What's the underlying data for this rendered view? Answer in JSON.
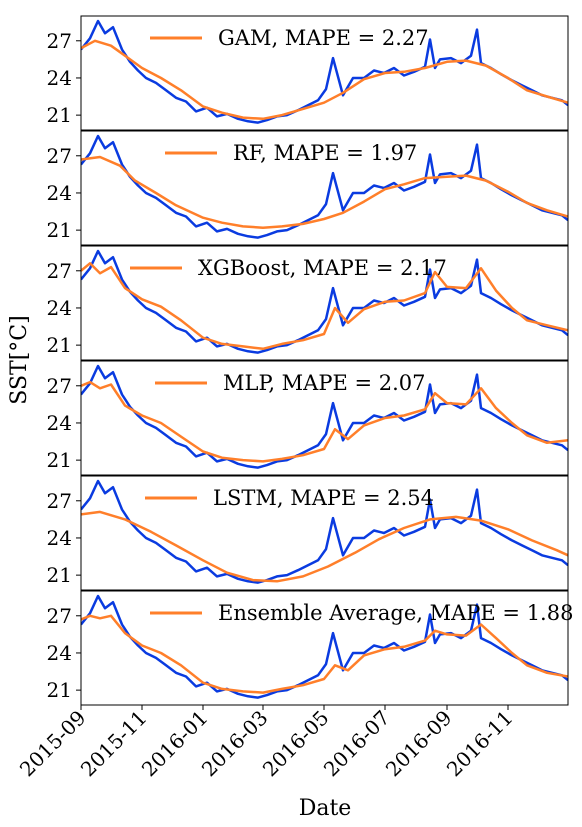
{
  "chart_data": {
    "type": "line",
    "ylabel": "SST[°C]",
    "xlabel": "Date",
    "xlim": [
      "2015-09-01",
      "2016-12-31"
    ],
    "xticks": [
      "2015-09",
      "2015-11",
      "2016-01",
      "2016-03",
      "2016-05",
      "2016-07",
      "2016-09",
      "2016-11"
    ],
    "ylim": [
      19.8,
      29.0
    ],
    "yticks": [
      21,
      24,
      27
    ],
    "shared_x": true,
    "observed_color": "#0a3be0",
    "predicted_color": "#ff7f2a",
    "observed": {
      "x": [
        "2015-09-01",
        "2015-09-10",
        "2015-09-18",
        "2015-09-25",
        "2015-10-03",
        "2015-10-12",
        "2015-10-20",
        "2015-10-28",
        "2015-11-05",
        "2015-11-15",
        "2015-11-25",
        "2015-12-05",
        "2015-12-15",
        "2015-12-25",
        "2016-01-05",
        "2016-01-15",
        "2016-01-25",
        "2016-02-05",
        "2016-02-15",
        "2016-02-25",
        "2016-03-05",
        "2016-03-15",
        "2016-03-25",
        "2016-04-05",
        "2016-04-15",
        "2016-04-25",
        "2016-05-03",
        "2016-05-10",
        "2016-05-20",
        "2016-05-30",
        "2016-06-10",
        "2016-06-20",
        "2016-06-30",
        "2016-07-10",
        "2016-07-20",
        "2016-07-30",
        "2016-08-10",
        "2016-08-15",
        "2016-08-20",
        "2016-08-25",
        "2016-09-05",
        "2016-09-15",
        "2016-09-25",
        "2016-10-01",
        "2016-10-05",
        "2016-10-15",
        "2016-10-25",
        "2016-11-05",
        "2016-11-15",
        "2016-11-25",
        "2016-12-05",
        "2016-12-15",
        "2016-12-25",
        "2016-12-31"
      ],
      "y": [
        26.3,
        27.2,
        28.6,
        27.6,
        28.1,
        26.3,
        25.3,
        24.6,
        24.0,
        23.6,
        23.0,
        22.4,
        22.1,
        21.3,
        21.6,
        20.9,
        21.1,
        20.7,
        20.5,
        20.4,
        20.6,
        20.9,
        21.0,
        21.4,
        21.8,
        22.2,
        23.1,
        25.6,
        22.6,
        24.0,
        24.0,
        24.6,
        24.4,
        24.8,
        24.2,
        24.5,
        24.9,
        27.1,
        24.8,
        25.5,
        25.6,
        25.2,
        25.8,
        27.9,
        25.2,
        24.8,
        24.3,
        23.8,
        23.4,
        23.0,
        22.6,
        22.4,
        22.2,
        21.8
      ]
    },
    "panels": [
      {
        "label": "GAM, MAPE = 2.27",
        "x": [
          "2015-09-01",
          "2015-09-15",
          "2015-10-01",
          "2015-10-15",
          "2015-11-01",
          "2015-11-20",
          "2015-12-10",
          "2016-01-01",
          "2016-01-20",
          "2016-02-10",
          "2016-03-01",
          "2016-03-20",
          "2016-04-10",
          "2016-05-01",
          "2016-05-20",
          "2016-06-10",
          "2016-07-01",
          "2016-07-20",
          "2016-08-10",
          "2016-09-01",
          "2016-09-20",
          "2016-10-10",
          "2016-11-01",
          "2016-11-20",
          "2016-12-10",
          "2016-12-31"
        ],
        "y": [
          26.4,
          27.0,
          26.6,
          25.8,
          24.8,
          24.0,
          23.0,
          21.7,
          21.2,
          20.8,
          20.7,
          21.0,
          21.5,
          22.0,
          22.8,
          23.9,
          24.4,
          24.5,
          24.8,
          25.3,
          25.4,
          25.0,
          24.0,
          23.0,
          22.5,
          22.0
        ]
      },
      {
        "label": "RF, MAPE = 1.97",
        "x": [
          "2015-09-01",
          "2015-09-20",
          "2015-10-10",
          "2015-10-25",
          "2015-11-15",
          "2015-12-05",
          "2016-01-01",
          "2016-01-20",
          "2016-02-10",
          "2016-03-01",
          "2016-03-20",
          "2016-04-10",
          "2016-05-01",
          "2016-05-20",
          "2016-06-10",
          "2016-07-01",
          "2016-07-20",
          "2016-08-10",
          "2016-09-01",
          "2016-09-20",
          "2016-10-10",
          "2016-11-01",
          "2016-11-20",
          "2016-12-10",
          "2016-12-31"
        ],
        "y": [
          26.7,
          26.9,
          26.2,
          25.0,
          24.0,
          23.0,
          22.0,
          21.6,
          21.3,
          21.2,
          21.3,
          21.5,
          21.9,
          22.4,
          23.3,
          24.3,
          24.7,
          25.2,
          25.3,
          25.4,
          25.0,
          24.1,
          23.2,
          22.6,
          22.1
        ]
      },
      {
        "label": "XGBoost, MAPE = 2.17",
        "x": [
          "2015-09-01",
          "2015-09-10",
          "2015-09-20",
          "2015-10-01",
          "2015-10-15",
          "2015-11-01",
          "2015-11-20",
          "2015-12-10",
          "2016-01-01",
          "2016-01-20",
          "2016-02-10",
          "2016-03-01",
          "2016-03-20",
          "2016-04-10",
          "2016-05-01",
          "2016-05-12",
          "2016-05-25",
          "2016-06-10",
          "2016-07-01",
          "2016-07-20",
          "2016-08-10",
          "2016-08-20",
          "2016-09-01",
          "2016-09-20",
          "2016-10-05",
          "2016-10-20",
          "2016-11-05",
          "2016-11-20",
          "2016-12-10",
          "2016-12-31"
        ],
        "y": [
          27.0,
          27.6,
          26.8,
          27.3,
          25.6,
          24.7,
          24.1,
          23.0,
          21.6,
          21.1,
          20.9,
          20.7,
          21.1,
          21.4,
          21.9,
          24.0,
          22.8,
          23.9,
          24.5,
          24.6,
          25.2,
          26.9,
          25.7,
          25.6,
          27.2,
          25.4,
          24.0,
          23.0,
          22.6,
          22.2
        ]
      },
      {
        "label": "MLP, MAPE = 2.07",
        "x": [
          "2015-09-01",
          "2015-09-10",
          "2015-09-20",
          "2015-10-01",
          "2015-10-15",
          "2015-11-01",
          "2015-11-20",
          "2015-12-10",
          "2016-01-01",
          "2016-01-20",
          "2016-02-10",
          "2016-03-01",
          "2016-03-20",
          "2016-04-10",
          "2016-05-01",
          "2016-05-12",
          "2016-05-25",
          "2016-06-10",
          "2016-07-01",
          "2016-07-20",
          "2016-08-10",
          "2016-08-20",
          "2016-09-01",
          "2016-09-20",
          "2016-10-05",
          "2016-10-20",
          "2016-11-05",
          "2016-11-20",
          "2016-12-10",
          "2016-12-31"
        ],
        "y": [
          27.0,
          27.3,
          26.8,
          27.1,
          25.4,
          24.6,
          24.0,
          22.9,
          21.7,
          21.2,
          21.0,
          20.9,
          21.1,
          21.4,
          21.9,
          23.5,
          22.7,
          23.8,
          24.4,
          24.6,
          25.1,
          26.4,
          25.6,
          25.5,
          26.8,
          25.2,
          24.0,
          23.0,
          22.4,
          22.6
        ]
      },
      {
        "label": "LSTM, MAPE = 2.54",
        "x": [
          "2015-09-01",
          "2015-09-20",
          "2015-10-15",
          "2015-11-10",
          "2015-12-05",
          "2016-01-01",
          "2016-01-25",
          "2016-02-20",
          "2016-03-15",
          "2016-04-10",
          "2016-05-05",
          "2016-06-01",
          "2016-06-25",
          "2016-07-20",
          "2016-08-15",
          "2016-09-10",
          "2016-10-05",
          "2016-11-01",
          "2016-11-25",
          "2016-12-20",
          "2016-12-31"
        ],
        "y": [
          25.9,
          26.1,
          25.5,
          24.5,
          23.4,
          22.2,
          21.2,
          20.6,
          20.5,
          20.9,
          21.7,
          22.8,
          23.9,
          24.8,
          25.5,
          25.7,
          25.4,
          24.7,
          23.8,
          23.0,
          22.6
        ]
      },
      {
        "label": "Ensemble Average, MAPE = 1.88",
        "x": [
          "2015-09-01",
          "2015-09-10",
          "2015-09-20",
          "2015-10-01",
          "2015-10-15",
          "2015-11-01",
          "2015-11-20",
          "2015-12-10",
          "2016-01-01",
          "2016-01-20",
          "2016-02-10",
          "2016-03-01",
          "2016-03-20",
          "2016-04-10",
          "2016-05-01",
          "2016-05-12",
          "2016-05-25",
          "2016-06-10",
          "2016-07-01",
          "2016-07-20",
          "2016-08-10",
          "2016-08-20",
          "2016-09-01",
          "2016-09-20",
          "2016-10-05",
          "2016-10-20",
          "2016-11-05",
          "2016-11-20",
          "2016-12-10",
          "2016-12-31"
        ],
        "y": [
          26.7,
          27.0,
          26.8,
          27.0,
          25.6,
          24.6,
          24.0,
          23.0,
          21.6,
          21.1,
          20.9,
          20.8,
          21.1,
          21.4,
          21.9,
          23.0,
          22.6,
          23.8,
          24.3,
          24.5,
          25.0,
          25.8,
          25.5,
          25.4,
          26.3,
          25.2,
          24.0,
          23.0,
          22.4,
          22.1
        ]
      }
    ]
  }
}
